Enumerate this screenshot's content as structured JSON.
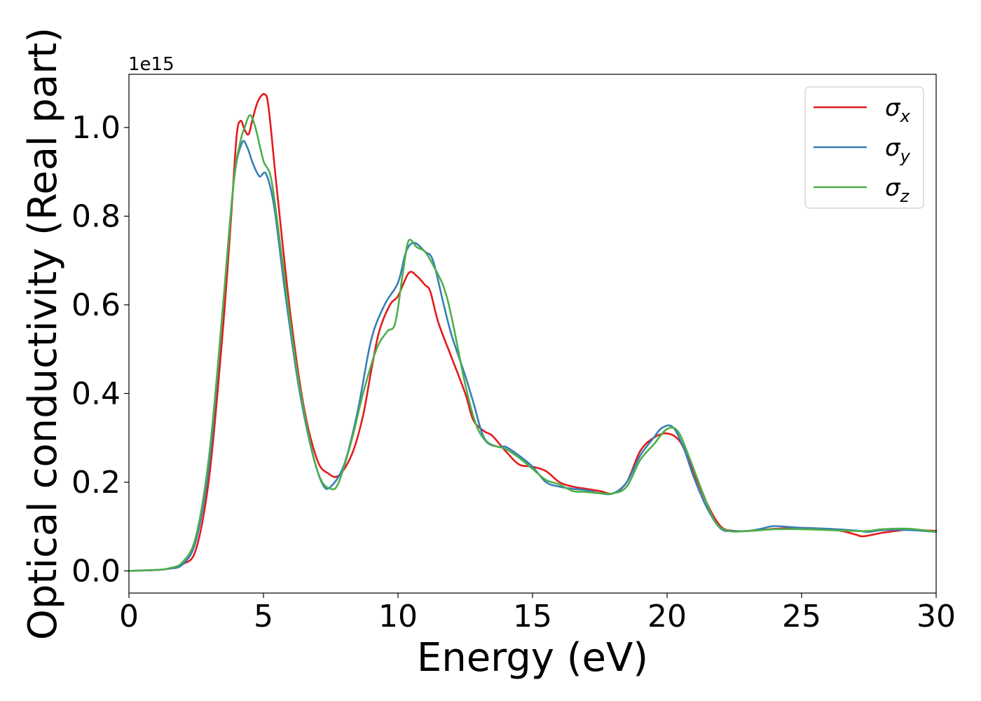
{
  "chart_data": {
    "type": "line",
    "xlabel": "Energy (eV)",
    "ylabel": "Optical conductivity (Real part)",
    "y_offset_label": "1e15",
    "xlim": [
      0,
      30
    ],
    "ylim": [
      -0.05,
      1.12
    ],
    "x_ticks": [
      0,
      5,
      10,
      15,
      20,
      25,
      30
    ],
    "x_tick_labels": [
      "0",
      "5",
      "10",
      "15",
      "20",
      "25",
      "30"
    ],
    "y_ticks": [
      0.0,
      0.2,
      0.4,
      0.6,
      0.8,
      1.0
    ],
    "y_tick_labels": [
      "0.0",
      "0.2",
      "0.4",
      "0.6",
      "0.8",
      "1.0"
    ],
    "grid": false,
    "legend_position": "top-right",
    "series": [
      {
        "name": "σx",
        "symbol": "σ",
        "subscript": "x",
        "color": "#e41a1c",
        "points": [
          [
            0,
            0
          ],
          [
            1,
            0.002
          ],
          [
            1.5,
            0.005
          ],
          [
            2,
            0.015
          ],
          [
            2.5,
            0.05
          ],
          [
            3,
            0.22
          ],
          [
            3.5,
            0.55
          ],
          [
            3.8,
            0.8
          ],
          [
            4,
            0.98
          ],
          [
            4.15,
            1.015
          ],
          [
            4.3,
            0.995
          ],
          [
            4.45,
            0.985
          ],
          [
            4.6,
            1.02
          ],
          [
            4.8,
            1.06
          ],
          [
            5.05,
            1.075
          ],
          [
            5.2,
            1.04
          ],
          [
            5.5,
            0.86
          ],
          [
            6,
            0.58
          ],
          [
            6.5,
            0.37
          ],
          [
            7,
            0.25
          ],
          [
            7.4,
            0.22
          ],
          [
            7.8,
            0.215
          ],
          [
            8.3,
            0.265
          ],
          [
            8.7,
            0.35
          ],
          [
            9,
            0.45
          ],
          [
            9.3,
            0.54
          ],
          [
            9.7,
            0.6
          ],
          [
            10,
            0.62
          ],
          [
            10.4,
            0.672
          ],
          [
            10.7,
            0.665
          ],
          [
            11,
            0.645
          ],
          [
            11.2,
            0.63
          ],
          [
            11.5,
            0.56
          ],
          [
            12,
            0.48
          ],
          [
            12.5,
            0.4
          ],
          [
            12.8,
            0.34
          ],
          [
            13.2,
            0.315
          ],
          [
            13.5,
            0.305
          ],
          [
            14,
            0.27
          ],
          [
            14.5,
            0.24
          ],
          [
            15,
            0.235
          ],
          [
            15.5,
            0.225
          ],
          [
            16,
            0.2
          ],
          [
            16.5,
            0.19
          ],
          [
            17,
            0.185
          ],
          [
            17.5,
            0.18
          ],
          [
            18,
            0.175
          ],
          [
            18.5,
            0.2
          ],
          [
            19,
            0.27
          ],
          [
            19.5,
            0.3
          ],
          [
            20,
            0.31
          ],
          [
            20.5,
            0.29
          ],
          [
            21,
            0.22
          ],
          [
            21.5,
            0.15
          ],
          [
            22,
            0.1
          ],
          [
            22.5,
            0.09
          ],
          [
            23,
            0.09
          ],
          [
            23.5,
            0.092
          ],
          [
            24,
            0.095
          ],
          [
            25,
            0.097
          ],
          [
            26,
            0.094
          ],
          [
            26.5,
            0.09
          ],
          [
            27,
            0.082
          ],
          [
            27.3,
            0.078
          ],
          [
            28,
            0.086
          ],
          [
            28.5,
            0.09
          ],
          [
            29,
            0.093
          ],
          [
            30,
            0.09
          ]
        ]
      },
      {
        "name": "σy",
        "symbol": "σ",
        "subscript": "y",
        "color": "#377eb8",
        "points": [
          [
            0,
            0
          ],
          [
            1,
            0.002
          ],
          [
            1.5,
            0.005
          ],
          [
            2,
            0.015
          ],
          [
            2.5,
            0.07
          ],
          [
            3,
            0.25
          ],
          [
            3.5,
            0.6
          ],
          [
            3.9,
            0.88
          ],
          [
            4.2,
            0.965
          ],
          [
            4.4,
            0.955
          ],
          [
            4.6,
            0.92
          ],
          [
            4.85,
            0.89
          ],
          [
            5.1,
            0.895
          ],
          [
            5.4,
            0.82
          ],
          [
            5.8,
            0.63
          ],
          [
            6.3,
            0.42
          ],
          [
            6.8,
            0.27
          ],
          [
            7.2,
            0.195
          ],
          [
            7.5,
            0.19
          ],
          [
            8,
            0.24
          ],
          [
            8.5,
            0.36
          ],
          [
            9,
            0.52
          ],
          [
            9.5,
            0.6
          ],
          [
            10,
            0.65
          ],
          [
            10.3,
            0.72
          ],
          [
            10.6,
            0.74
          ],
          [
            11,
            0.72
          ],
          [
            11.3,
            0.7
          ],
          [
            11.7,
            0.6
          ],
          [
            12,
            0.53
          ],
          [
            12.5,
            0.44
          ],
          [
            12.8,
            0.38
          ],
          [
            13.2,
            0.3
          ],
          [
            13.7,
            0.28
          ],
          [
            14,
            0.28
          ],
          [
            14.5,
            0.26
          ],
          [
            15,
            0.235
          ],
          [
            15.5,
            0.2
          ],
          [
            16,
            0.19
          ],
          [
            16.5,
            0.185
          ],
          [
            17,
            0.182
          ],
          [
            17.5,
            0.175
          ],
          [
            18,
            0.175
          ],
          [
            18.5,
            0.2
          ],
          [
            19,
            0.26
          ],
          [
            19.5,
            0.3
          ],
          [
            19.8,
            0.322
          ],
          [
            20.2,
            0.325
          ],
          [
            20.6,
            0.28
          ],
          [
            21,
            0.21
          ],
          [
            21.5,
            0.14
          ],
          [
            22,
            0.095
          ],
          [
            22.5,
            0.09
          ],
          [
            23,
            0.09
          ],
          [
            23.5,
            0.095
          ],
          [
            24,
            0.101
          ],
          [
            25,
            0.097
          ],
          [
            26,
            0.095
          ],
          [
            27,
            0.091
          ],
          [
            27.5,
            0.088
          ],
          [
            28,
            0.092
          ],
          [
            29,
            0.092
          ],
          [
            30,
            0.088
          ]
        ]
      },
      {
        "name": "σz",
        "symbol": "σ",
        "subscript": "z",
        "color": "#4daf4a",
        "points": [
          [
            0,
            0
          ],
          [
            1,
            0.002
          ],
          [
            1.5,
            0.006
          ],
          [
            2,
            0.02
          ],
          [
            2.5,
            0.08
          ],
          [
            3,
            0.27
          ],
          [
            3.5,
            0.6
          ],
          [
            3.9,
            0.88
          ],
          [
            4.15,
            0.97
          ],
          [
            4.3,
            1.0
          ],
          [
            4.5,
            1.028
          ],
          [
            4.7,
            1.0
          ],
          [
            5,
            0.925
          ],
          [
            5.3,
            0.88
          ],
          [
            5.7,
            0.7
          ],
          [
            6.2,
            0.47
          ],
          [
            6.7,
            0.3
          ],
          [
            7.1,
            0.21
          ],
          [
            7.5,
            0.185
          ],
          [
            7.8,
            0.2
          ],
          [
            8.3,
            0.3
          ],
          [
            8.7,
            0.4
          ],
          [
            9.2,
            0.5
          ],
          [
            9.6,
            0.54
          ],
          [
            9.9,
            0.56
          ],
          [
            10.2,
            0.68
          ],
          [
            10.4,
            0.745
          ],
          [
            10.7,
            0.73
          ],
          [
            11,
            0.72
          ],
          [
            11.3,
            0.69
          ],
          [
            11.7,
            0.64
          ],
          [
            12,
            0.57
          ],
          [
            12.5,
            0.42
          ],
          [
            12.9,
            0.33
          ],
          [
            13.3,
            0.29
          ],
          [
            13.7,
            0.28
          ],
          [
            14,
            0.275
          ],
          [
            14.5,
            0.255
          ],
          [
            15,
            0.23
          ],
          [
            15.5,
            0.205
          ],
          [
            16,
            0.195
          ],
          [
            16.5,
            0.18
          ],
          [
            17,
            0.178
          ],
          [
            17.5,
            0.175
          ],
          [
            18,
            0.175
          ],
          [
            18.5,
            0.19
          ],
          [
            19,
            0.25
          ],
          [
            19.5,
            0.285
          ],
          [
            20,
            0.32
          ],
          [
            20.4,
            0.315
          ],
          [
            20.8,
            0.26
          ],
          [
            21.3,
            0.18
          ],
          [
            21.8,
            0.11
          ],
          [
            22.3,
            0.09
          ],
          [
            23,
            0.09
          ],
          [
            24,
            0.094
          ],
          [
            25,
            0.094
          ],
          [
            26,
            0.092
          ],
          [
            27,
            0.09
          ],
          [
            27.5,
            0.09
          ],
          [
            28,
            0.094
          ],
          [
            29,
            0.095
          ],
          [
            30,
            0.088
          ]
        ]
      }
    ]
  }
}
